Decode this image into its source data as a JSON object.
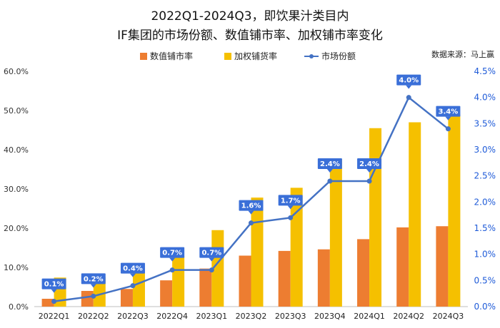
{
  "chart_data": {
    "type": "bar",
    "title_line1": "2022Q1-2024Q3，即饮果汁类目内",
    "title_line2": "IF集团的市场份额、数值铺市率、加权铺市率变化",
    "source": "数据来源：马上赢",
    "categories": [
      "2022Q1",
      "2022Q2",
      "2022Q3",
      "2022Q4",
      "2023Q1",
      "2023Q2",
      "2023Q3",
      "2023Q4",
      "2024Q1",
      "2024Q2",
      "2024Q3"
    ],
    "series": [
      {
        "name": "数值铺市率",
        "axis": "left",
        "color": "#ed7d31",
        "values": [
          2.0,
          4.0,
          4.5,
          6.7,
          9.7,
          13.0,
          14.2,
          14.6,
          17.2,
          20.2,
          20.5
        ]
      },
      {
        "name": "加权铺货率",
        "axis": "left",
        "color": "#f5c000",
        "values": [
          7.4,
          7.5,
          9.7,
          12.8,
          19.5,
          27.8,
          30.3,
          37.6,
          45.5,
          47.0,
          49.0
        ]
      },
      {
        "name": "市场份额",
        "axis": "right",
        "type": "line",
        "color": "#4472c4",
        "values": [
          0.1,
          0.2,
          0.4,
          0.7,
          0.7,
          1.6,
          1.7,
          2.4,
          2.4,
          4.0,
          3.4
        ],
        "labels": [
          "0.1%",
          "0.2%",
          "0.4%",
          "0.7%",
          "0.7%",
          "1.6%",
          "1.7%",
          "2.4%",
          "2.4%",
          "4.0%",
          "3.4%"
        ]
      }
    ],
    "left_axis": {
      "range": [
        0,
        60
      ],
      "ticks": [
        "0.0%",
        "10.0%",
        "20.0%",
        "30.0%",
        "40.0%",
        "50.0%",
        "60.0%"
      ]
    },
    "right_axis": {
      "range": [
        0,
        4.5
      ],
      "ticks": [
        "0.0%",
        "0.5%",
        "1.0%",
        "1.5%",
        "2.0%",
        "2.5%",
        "3.0%",
        "3.5%",
        "4.0%",
        "4.5%"
      ]
    },
    "grid": false,
    "legend_position": "top"
  }
}
